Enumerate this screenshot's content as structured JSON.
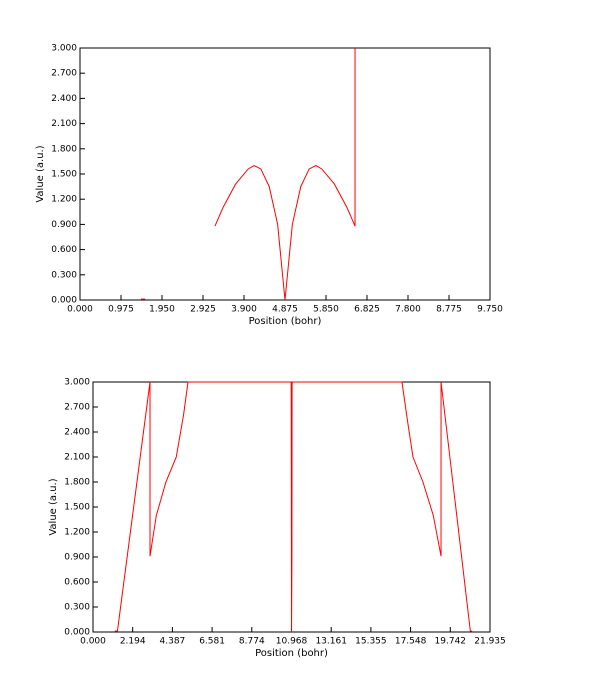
{
  "chart_data": [
    {
      "type": "line",
      "x_label": "Position (bohr)",
      "y_label": "Value (a.u.)",
      "xlim": [
        0,
        9.75
      ],
      "ylim": [
        0,
        3
      ],
      "xticks": [
        {
          "value": 0,
          "label": "0.000"
        },
        {
          "value": 0.975,
          "label": "0.975"
        },
        {
          "value": 1.95,
          "label": "1.950"
        },
        {
          "value": 2.925,
          "label": "2.925"
        },
        {
          "value": 3.9,
          "label": "3.900"
        },
        {
          "value": 4.875,
          "label": "4.875"
        },
        {
          "value": 5.85,
          "label": "5.850"
        },
        {
          "value": 6.825,
          "label": "6.825"
        },
        {
          "value": 7.8,
          "label": "7.800"
        },
        {
          "value": 8.775,
          "label": "8.775"
        },
        {
          "value": 9.75,
          "label": "9.750"
        }
      ],
      "yticks": [
        {
          "value": 0,
          "label": "0.000"
        },
        {
          "value": 0.3,
          "label": "0.300"
        },
        {
          "value": 0.6,
          "label": "0.600"
        },
        {
          "value": 0.9,
          "label": "0.900"
        },
        {
          "value": 1.2,
          "label": "1.200"
        },
        {
          "value": 1.5,
          "label": "1.500"
        },
        {
          "value": 1.8,
          "label": "1.800"
        },
        {
          "value": 2.1,
          "label": "2.100"
        },
        {
          "value": 2.4,
          "label": "2.400"
        },
        {
          "value": 2.7,
          "label": "2.700"
        },
        {
          "value": 3,
          "label": "3.000"
        }
      ],
      "series": [
        {
          "color": "#ff0000",
          "x": [
            1.45,
            1.55,
            3.21,
            3.21,
            3.4,
            3.7,
            4.0,
            4.14,
            4.3,
            4.5,
            4.7,
            4.875,
            5.05,
            5.25,
            5.45,
            5.61,
            5.75,
            6.05,
            6.35,
            6.54,
            6.54,
            8.25,
            8.35
          ],
          "values": [
            0.01,
            0.01,
            null,
            0.88,
            1.1,
            1.38,
            1.56,
            1.6,
            1.56,
            1.35,
            0.9,
            0,
            0.9,
            1.35,
            1.56,
            1.6,
            1.56,
            1.38,
            1.1,
            0.88,
            3,
            null,
            0.01
          ]
        }
      ]
    },
    {
      "type": "line",
      "x_label": "Position (bohr)",
      "y_label": "Value (a.u.)",
      "xlim": [
        0,
        21.935
      ],
      "ylim": [
        0,
        3
      ],
      "xticks": [
        {
          "value": 0,
          "label": "0.000"
        },
        {
          "value": 2.1935,
          "label": "2.194"
        },
        {
          "value": 4.387,
          "label": "4.387"
        },
        {
          "value": 6.5805,
          "label": "6.581"
        },
        {
          "value": 8.774,
          "label": "8.774"
        },
        {
          "value": 10.9675,
          "label": "10.968"
        },
        {
          "value": 13.161,
          "label": "13.161"
        },
        {
          "value": 15.3545,
          "label": "15.355"
        },
        {
          "value": 17.548,
          "label": "17.548"
        },
        {
          "value": 19.7415,
          "label": "19.742"
        },
        {
          "value": 21.935,
          "label": "21.935"
        }
      ],
      "yticks": [
        {
          "value": 0,
          "label": "0.000"
        },
        {
          "value": 0.3,
          "label": "0.300"
        },
        {
          "value": 0.6,
          "label": "0.600"
        },
        {
          "value": 0.9,
          "label": "0.900"
        },
        {
          "value": 1.2,
          "label": "1.200"
        },
        {
          "value": 1.5,
          "label": "1.500"
        },
        {
          "value": 1.8,
          "label": "1.800"
        },
        {
          "value": 2.1,
          "label": "2.100"
        },
        {
          "value": 2.4,
          "label": "2.400"
        },
        {
          "value": 2.7,
          "label": "2.700"
        },
        {
          "value": 3,
          "label": "3.000"
        }
      ],
      "series": [
        {
          "color": "#ff0000",
          "x": [
            1.2,
            1.35,
            3.15,
            3.15,
            3.5,
            4.03,
            4.6,
            5.0,
            5.25,
            10.95,
            10.97,
            10.99,
            11.0,
            17.07,
            17.4,
            17.68,
            18.23,
            18.8,
            19.23,
            19.23,
            20.85,
            20.95
          ],
          "values": [
            0.01,
            0.01,
            3,
            0.91,
            1.4,
            1.8,
            2.1,
            2.6,
            3,
            3,
            0,
            0.91,
            3,
            3,
            2.5,
            2.1,
            1.8,
            1.4,
            0.91,
            3,
            0.01,
            0.01
          ]
        }
      ]
    }
  ]
}
